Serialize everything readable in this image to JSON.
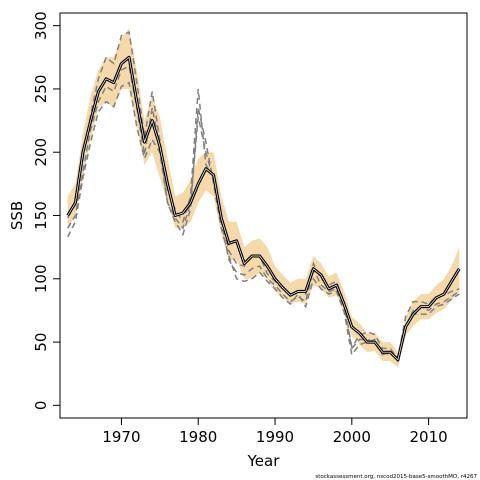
{
  "chart_data": {
    "type": "line",
    "title": "",
    "xlabel": "Year",
    "ylabel": "SSB",
    "xlim": [
      1962,
      2015
    ],
    "ylim": [
      -10,
      310
    ],
    "xticks": [
      1970,
      1980,
      1990,
      2000,
      2010
    ],
    "yticks": [
      0,
      50,
      100,
      150,
      200,
      250,
      300
    ],
    "footnote": "stockassessment.org, nscod2015-base5-smoothMO, r4267",
    "colors": {
      "ssb": "#000000",
      "band": "#f5d9a8",
      "retro": "#808080",
      "frame": "#000000"
    },
    "x": [
      1963,
      1964,
      1965,
      1966,
      1967,
      1968,
      1969,
      1970,
      1971,
      1972,
      1973,
      1974,
      1975,
      1976,
      1977,
      1978,
      1979,
      1980,
      1981,
      1982,
      1983,
      1984,
      1985,
      1986,
      1987,
      1988,
      1989,
      1990,
      1991,
      1992,
      1993,
      1994,
      1995,
      1996,
      1997,
      1998,
      1999,
      2000,
      2001,
      2002,
      2003,
      2004,
      2005,
      2006,
      2007,
      2008,
      2009,
      2010,
      2011,
      2012,
      2013,
      2014
    ],
    "series": [
      {
        "values": [
          150,
          160,
          200,
          225,
          248,
          258,
          255,
          270,
          275,
          240,
          208,
          225,
          205,
          175,
          150,
          152,
          160,
          175,
          187,
          182,
          148,
          128,
          130,
          112,
          118,
          118,
          110,
          100,
          93,
          87,
          90,
          90,
          108,
          103,
          92,
          95,
          80,
          62,
          57,
          50,
          50,
          42,
          42,
          36,
          62,
          72,
          78,
          78,
          85,
          88,
          98,
          108
        ]
      }
    ],
    "band": {
      "lower": [
        140,
        150,
        180,
        210,
        235,
        240,
        235,
        250,
        250,
        220,
        190,
        200,
        180,
        160,
        140,
        140,
        145,
        160,
        170,
        165,
        135,
        115,
        115,
        100,
        100,
        105,
        100,
        90,
        85,
        80,
        82,
        80,
        95,
        92,
        85,
        87,
        73,
        55,
        48,
        42,
        43,
        35,
        35,
        30,
        55,
        63,
        68,
        68,
        73,
        76,
        83,
        90
      ],
      "upper": [
        165,
        175,
        215,
        245,
        265,
        275,
        275,
        290,
        298,
        265,
        225,
        245,
        228,
        195,
        165,
        168,
        178,
        195,
        200,
        200,
        165,
        145,
        145,
        125,
        130,
        132,
        125,
        110,
        103,
        97,
        100,
        100,
        118,
        112,
        102,
        105,
        90,
        70,
        65,
        57,
        57,
        50,
        50,
        42,
        70,
        82,
        88,
        88,
        95,
        100,
        110,
        125
      ]
    },
    "retro_lines": [
      {
        "values": [
          133,
          145,
          180,
          208,
          232,
          240,
          236,
          252,
          255,
          220,
          195,
          210,
          200,
          160,
          145,
          135,
          155,
          235,
          208,
          175,
          140,
          118,
          100,
          98,
          100,
          105,
          98,
          92,
          85,
          80,
          88,
          78,
          100,
          92,
          88,
          90,
          74,
          40,
          48,
          50,
          52,
          40,
          42,
          35,
          62,
          75,
          78,
          75,
          80,
          82,
          86,
          90
        ]
      },
      {
        "values": [
          140,
          150,
          185,
          218,
          240,
          252,
          248,
          265,
          268,
          235,
          198,
          235,
          205,
          160,
          148,
          140,
          160,
          228,
          200,
          178,
          145,
          115,
          105,
          103,
          108,
          110,
          100,
          95,
          88,
          82,
          86,
          82,
          108,
          95,
          90,
          92,
          78,
          45,
          52,
          52,
          50,
          42,
          40,
          38,
          62,
          72,
          72,
          72,
          78,
          80,
          84,
          88
        ]
      },
      {
        "values": [
          148,
          160,
          195,
          230,
          258,
          275,
          270,
          292,
          295,
          255,
          212,
          248,
          210,
          170,
          155,
          145,
          165,
          250,
          190,
          180,
          150,
          122,
          112,
          110,
          118,
          118,
          104,
          98,
          92,
          88,
          90,
          88,
          112,
          100,
          95,
          98,
          80,
          46,
          55,
          58,
          56,
          45,
          45,
          37,
          70,
          82,
          82,
          80,
          86,
          87,
          90,
          92
        ]
      }
    ]
  }
}
